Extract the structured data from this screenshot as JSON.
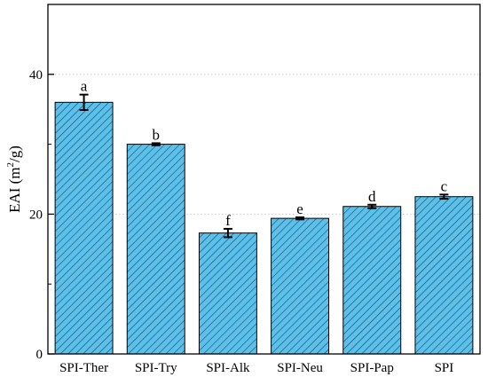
{
  "chart_data": {
    "type": "bar",
    "title": "",
    "xlabel": "",
    "ylabel": "EAI (m²/g)",
    "ylabel_parts": {
      "prefix": "EAI (m",
      "superscript": "2",
      "suffix": "/g)"
    },
    "categories": [
      "SPI-Ther",
      "SPI-Try",
      "SPI-Alk",
      "SPI-Neu",
      "SPI-Pap",
      "SPI"
    ],
    "values": [
      36.0,
      30.0,
      17.3,
      19.4,
      21.1,
      22.5
    ],
    "error": [
      1.1,
      0.15,
      0.6,
      0.15,
      0.25,
      0.3
    ],
    "significance_letters": [
      "a",
      "b",
      "f",
      "e",
      "d",
      "c"
    ],
    "ylim": [
      0,
      50
    ],
    "yticks": [
      0,
      20,
      40
    ],
    "minor_yticks": [
      10,
      30,
      50
    ],
    "grid": true,
    "grid_style": "dotted horizontal",
    "legend": "none",
    "colors": {
      "bar_fill": "#5bc0ea",
      "hatch": "#1a4a66",
      "bar_edge": "#000000",
      "error_bar": "#000000",
      "axis": "#000000",
      "grid": "#bfbfbf"
    },
    "pattern": "diagonal-hatch"
  }
}
